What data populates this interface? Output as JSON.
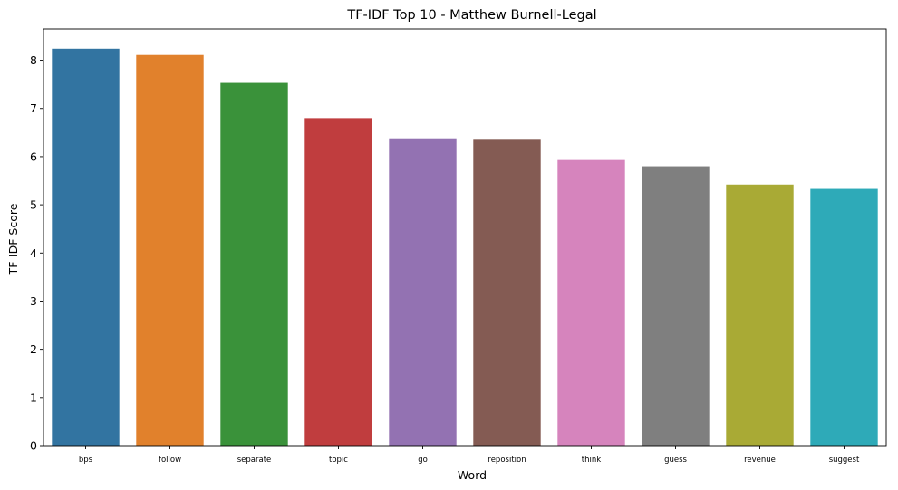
{
  "chart_data": {
    "type": "bar",
    "title": "TF-IDF Top 10 - Matthew Burnell-Legal",
    "xlabel": "Word",
    "ylabel": "TF-IDF Score",
    "categories": [
      "bps",
      "follow",
      "separate",
      "topic",
      "go",
      "reposition",
      "think",
      "guess",
      "revenue",
      "suggest"
    ],
    "values": [
      8.24,
      8.11,
      7.53,
      6.8,
      6.38,
      6.35,
      5.93,
      5.8,
      5.42,
      5.33
    ],
    "colors": [
      "#3274a1",
      "#e1812c",
      "#3a923a",
      "#c03d3e",
      "#9372b2",
      "#845b53",
      "#d684bd",
      "#7f7f7f",
      "#a9aa35",
      "#2eaab8"
    ],
    "yticks": [
      "0",
      "1",
      "2",
      "3",
      "4",
      "5",
      "6",
      "7",
      "8"
    ],
    "ylim": [
      0,
      8.65
    ],
    "grid": false,
    "legend": "none"
  }
}
